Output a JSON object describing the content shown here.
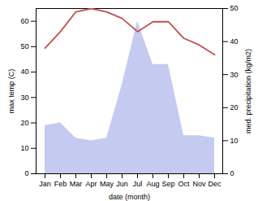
{
  "chart_data": {
    "type": "line",
    "xlabel": "date (month)",
    "ylabel": "max temp (C)",
    "y2label": "med. precipitation (kg/m2)",
    "categories": [
      "Jan",
      "Feb",
      "Mar",
      "Apr",
      "May",
      "Jun",
      "Jul",
      "Aug",
      "Sep",
      "Oct",
      "Nov",
      "Dec"
    ],
    "series": [
      {
        "type": "area",
        "color": "#c5caf0",
        "values": [
          19,
          20,
          14,
          13,
          14,
          35,
          60,
          43,
          43,
          15,
          15,
          14
        ]
      },
      {
        "type": "line",
        "color": "#c0504d",
        "axis": "y2",
        "values": [
          38,
          43,
          49,
          50,
          49,
          47,
          43,
          46,
          46,
          41,
          39,
          36
        ]
      }
    ],
    "ylim": [
      0,
      65
    ],
    "yticks": [
      0,
      10,
      20,
      30,
      40,
      50,
      60
    ],
    "y2lim": [
      0,
      50
    ],
    "y2ticks": [
      0,
      10,
      20,
      30,
      40,
      50
    ]
  }
}
